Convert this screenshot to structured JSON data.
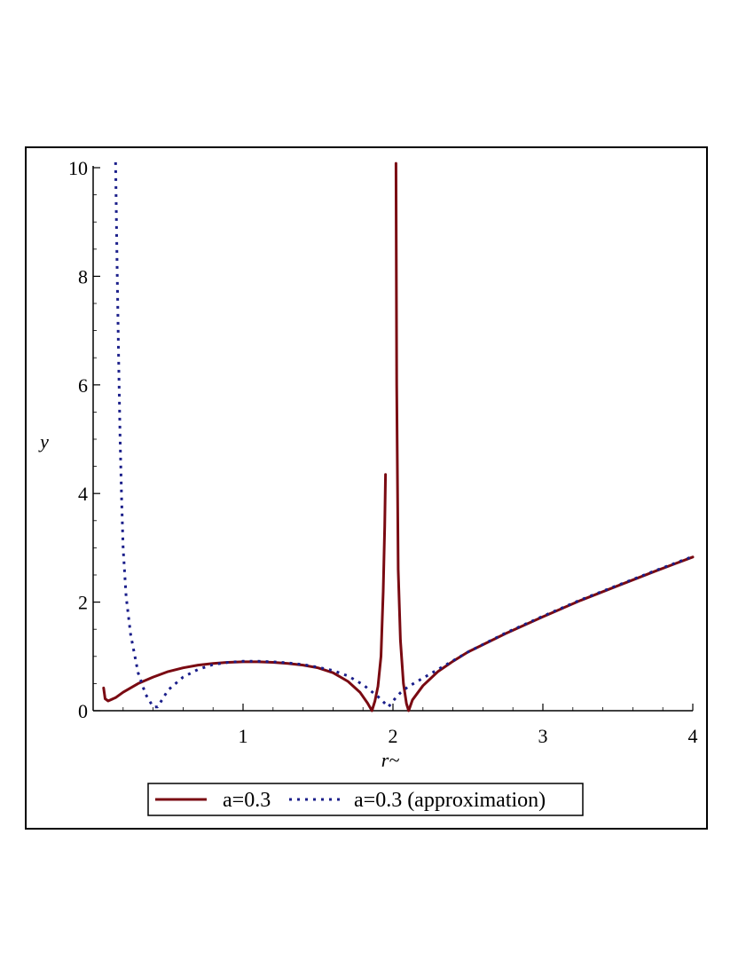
{
  "chart_data": {
    "type": "line",
    "title": "",
    "xlabel": "r~",
    "ylabel": "y",
    "xlim": [
      0,
      4
    ],
    "ylim": [
      0,
      10
    ],
    "x_ticks": [
      1,
      2,
      3,
      4
    ],
    "x_tick_labels": [
      "1",
      "2",
      "3",
      "4"
    ],
    "y_ticks": [
      0,
      2,
      4,
      6,
      8,
      10
    ],
    "y_tick_labels": [
      "0",
      "2",
      "4",
      "6",
      "8",
      "10"
    ],
    "grid": false,
    "legend_position": "bottom",
    "series": [
      {
        "name": "a=0.3",
        "color": "#7a0a12",
        "style": "solid",
        "points": [
          [
            0.07,
            0.42
          ],
          [
            0.08,
            0.22
          ],
          [
            0.1,
            0.18
          ],
          [
            0.15,
            0.24
          ],
          [
            0.2,
            0.34
          ],
          [
            0.3,
            0.5
          ],
          [
            0.4,
            0.62
          ],
          [
            0.5,
            0.72
          ],
          [
            0.6,
            0.79
          ],
          [
            0.7,
            0.84
          ],
          [
            0.8,
            0.87
          ],
          [
            0.9,
            0.89
          ],
          [
            1.0,
            0.9
          ],
          [
            1.1,
            0.9
          ],
          [
            1.2,
            0.89
          ],
          [
            1.3,
            0.87
          ],
          [
            1.4,
            0.84
          ],
          [
            1.5,
            0.79
          ],
          [
            1.6,
            0.7
          ],
          [
            1.7,
            0.54
          ],
          [
            1.78,
            0.34
          ],
          [
            1.83,
            0.14
          ],
          [
            1.86,
            0.0
          ],
          [
            1.88,
            0.18
          ],
          [
            1.9,
            0.45
          ],
          [
            1.92,
            1.0
          ],
          [
            1.935,
            2.2
          ],
          [
            1.945,
            3.4
          ],
          [
            1.95,
            4.35
          ]
        ],
        "points_segment2": [
          [
            2.02,
            10.08
          ],
          [
            2.025,
            6.0
          ],
          [
            2.035,
            2.6
          ],
          [
            2.05,
            1.3
          ],
          [
            2.07,
            0.5
          ],
          [
            2.09,
            0.13
          ],
          [
            2.105,
            0.0
          ],
          [
            2.13,
            0.2
          ],
          [
            2.2,
            0.46
          ],
          [
            2.3,
            0.72
          ],
          [
            2.4,
            0.91
          ],
          [
            2.5,
            1.08
          ],
          [
            2.75,
            1.42
          ],
          [
            3.0,
            1.73
          ],
          [
            3.25,
            2.03
          ],
          [
            3.5,
            2.3
          ],
          [
            3.75,
            2.57
          ],
          [
            4.0,
            2.83
          ]
        ]
      },
      {
        "name": "a=0.3 (approximation)",
        "color": "#1a1e8a",
        "style": "dotted",
        "points": [
          [
            0.15,
            10.1
          ],
          [
            0.16,
            8.2
          ],
          [
            0.17,
            6.5
          ],
          [
            0.18,
            5.0
          ],
          [
            0.19,
            3.9
          ],
          [
            0.2,
            3.0
          ],
          [
            0.22,
            2.1
          ],
          [
            0.25,
            1.4
          ],
          [
            0.3,
            0.7
          ],
          [
            0.35,
            0.3
          ],
          [
            0.4,
            0.07
          ],
          [
            0.43,
            0.07
          ],
          [
            0.5,
            0.38
          ],
          [
            0.6,
            0.62
          ],
          [
            0.7,
            0.76
          ],
          [
            0.8,
            0.85
          ],
          [
            0.9,
            0.89
          ],
          [
            1.0,
            0.91
          ],
          [
            1.1,
            0.91
          ],
          [
            1.2,
            0.9
          ],
          [
            1.3,
            0.88
          ],
          [
            1.4,
            0.85
          ],
          [
            1.5,
            0.8
          ],
          [
            1.6,
            0.74
          ],
          [
            1.7,
            0.64
          ],
          [
            1.8,
            0.48
          ],
          [
            1.9,
            0.26
          ],
          [
            1.97,
            0.07
          ],
          [
            2.0,
            0.18
          ],
          [
            2.05,
            0.33
          ],
          [
            2.1,
            0.44
          ],
          [
            2.2,
            0.6
          ],
          [
            2.3,
            0.76
          ],
          [
            2.4,
            0.92
          ],
          [
            2.5,
            1.08
          ],
          [
            2.75,
            1.43
          ],
          [
            3.0,
            1.74
          ],
          [
            3.25,
            2.04
          ],
          [
            3.5,
            2.31
          ],
          [
            3.75,
            2.58
          ],
          [
            4.0,
            2.84
          ]
        ]
      }
    ]
  }
}
